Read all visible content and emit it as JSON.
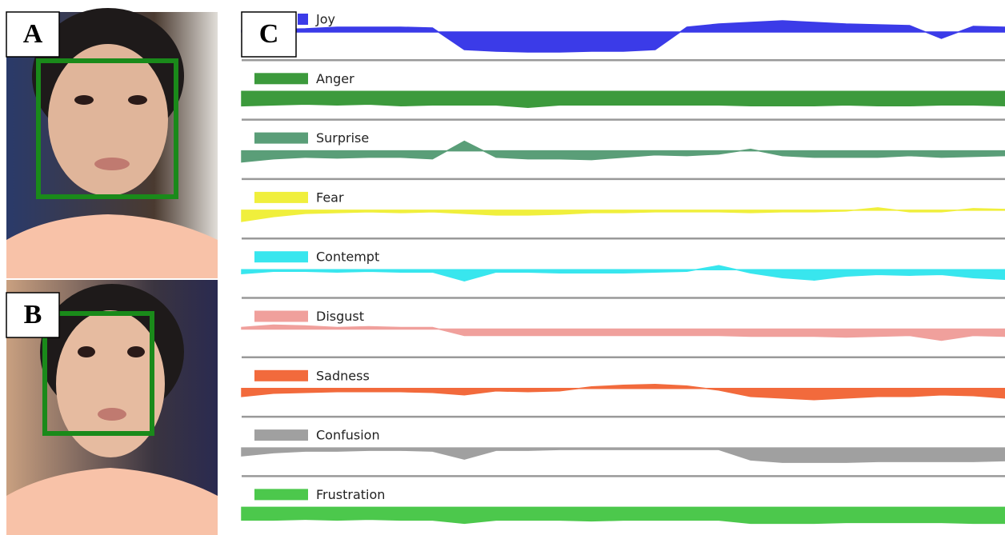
{
  "panels": {
    "a": {
      "label": "A"
    },
    "b": {
      "label": "B"
    },
    "c": {
      "label": "C"
    }
  },
  "emotions": [
    {
      "name": "Joy",
      "color": "#3b3be8",
      "values": [
        2,
        3,
        4,
        6,
        6,
        6,
        5,
        -22,
        -24,
        -25,
        -25,
        -24,
        -24,
        -22,
        6,
        10,
        12,
        14,
        12,
        10,
        9,
        8,
        -8,
        7,
        6
      ]
    },
    {
      "name": "Anger",
      "color": "#3c9a3c",
      "values": [
        -18,
        -17,
        -16,
        -17,
        -16,
        -18,
        -17,
        -17,
        -17,
        -20,
        -17,
        -17,
        -17,
        -17,
        -17,
        -17,
        -18,
        -18,
        -18,
        -17,
        -18,
        -18,
        -17,
        -17,
        -18
      ]
    },
    {
      "name": "Surprise",
      "color": "#5a9e78",
      "values": [
        -14,
        -10,
        -8,
        -9,
        -8,
        -8,
        -10,
        12,
        -8,
        -10,
        -10,
        -11,
        -8,
        -5,
        -6,
        -4,
        2,
        -6,
        -8,
        -8,
        -8,
        -6,
        -8,
        -7,
        -6
      ]
    },
    {
      "name": "Fear",
      "color": "#f0ef3c",
      "values": [
        -14,
        -8,
        -4,
        -3,
        -2,
        -3,
        -2,
        -4,
        -6,
        -6,
        -5,
        -3,
        -3,
        -2,
        -2,
        -2,
        -3,
        -2,
        -2,
        -1,
        3,
        -2,
        -2,
        2,
        1
      ]
    },
    {
      "name": "Contempt",
      "color": "#38e6ee",
      "values": [
        -5,
        -2,
        -2,
        -3,
        -2,
        -3,
        -3,
        -14,
        -3,
        -3,
        -4,
        -4,
        -4,
        -3,
        -2,
        5,
        -4,
        -10,
        -13,
        -8,
        -6,
        -7,
        -6,
        -10,
        -12
      ]
    },
    {
      "name": "Disgust",
      "color": "#f0a09c",
      "values": [
        2,
        5,
        4,
        2,
        3,
        2,
        2,
        -8,
        -8,
        -8,
        -8,
        -8,
        -8,
        -8,
        -8,
        -8,
        -9,
        -9,
        -9,
        -10,
        -9,
        -8,
        -14,
        -8,
        -9
      ]
    },
    {
      "name": "Sadness",
      "color": "#f26a3c",
      "values": [
        -10,
        -6,
        -5,
        -4,
        -4,
        -4,
        -5,
        -8,
        -3,
        -4,
        -3,
        2,
        4,
        5,
        3,
        -2,
        -10,
        -12,
        -14,
        -12,
        -10,
        -10,
        -8,
        -9,
        -12
      ]
    },
    {
      "name": "Confusion",
      "color": "#a0a0a0",
      "values": [
        -10,
        -6,
        -4,
        -4,
        -3,
        -3,
        -4,
        -14,
        -3,
        -3,
        -2,
        -2,
        -2,
        -2,
        -2,
        -2,
        -15,
        -18,
        -18,
        -18,
        -17,
        -17,
        -17,
        -17,
        -16
      ]
    },
    {
      "name": "Frustration",
      "color": "#4cc84c",
      "values": [
        -16,
        -16,
        -15,
        -16,
        -15,
        -16,
        -16,
        -20,
        -16,
        -16,
        -16,
        -17,
        -16,
        -16,
        -16,
        -16,
        -20,
        -20,
        -20,
        -19,
        -19,
        -19,
        -19,
        -20,
        -20
      ]
    }
  ]
}
